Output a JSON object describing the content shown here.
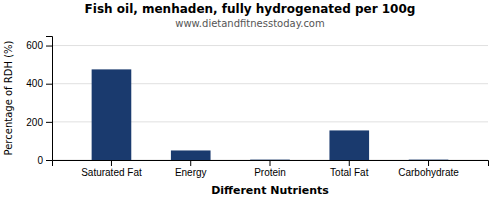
{
  "chart_data": {
    "type": "bar",
    "title": "Fish oil, menhaden, fully hydrogenated per 100g",
    "subtitle": "www.dietandfitnesstoday.com",
    "xlabel": "Different Nutrients",
    "ylabel": "Percentage of RDH (%)",
    "categories": [
      "Saturated Fat",
      "Energy",
      "Protein",
      "Total Fat",
      "Carbohydrate"
    ],
    "values": [
      475,
      50,
      2,
      155,
      2
    ],
    "color": "#1a3a6e",
    "ylim": [
      0,
      650
    ],
    "yticks": [
      0,
      200,
      400,
      600
    ],
    "grid": true
  }
}
